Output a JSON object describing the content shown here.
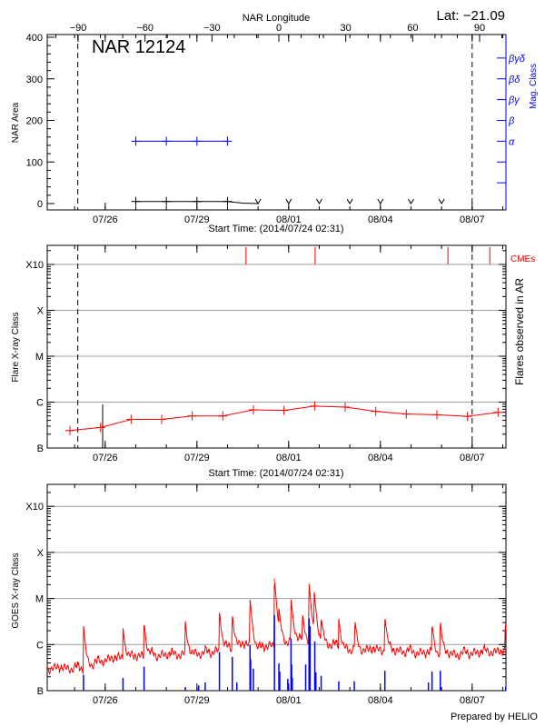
{
  "header": {
    "lat_label": "Lat: −21.09"
  },
  "footer": {
    "prepared_by": "Prepared by HELIO"
  },
  "colors": {
    "area": "#000000",
    "mag_class": "#0000ff",
    "flare": "#ff0000",
    "cme": "#ff0000",
    "goes": "#ff0000",
    "flare_events": "#0000ff",
    "grid": "#a0a0a0"
  },
  "chart_data": [
    {
      "type": "line",
      "title": "NAR 12124",
      "xlabel": "Start Time: (2014/07/24 02:31)",
      "top_xlabel": "NAR Longitude",
      "ylabel": "NAR Area",
      "y2label": "Mag. Class",
      "xlim": [
        "2014-07-24T02:31",
        "2014-08-08T02:31"
      ],
      "ylim": [
        0,
        400
      ],
      "x_ticks": [
        {
          "t": "2014-07-26T00:00",
          "label": "07/26"
        },
        {
          "t": "2014-07-29T00:00",
          "label": "07/29"
        },
        {
          "t": "2014-08-01T00:00",
          "label": "08/01"
        },
        {
          "t": "2014-08-04T00:00",
          "label": "08/04"
        },
        {
          "t": "2014-08-07T00:00",
          "label": "08/07"
        }
      ],
      "top_ticks": [
        -90,
        -60,
        -30,
        0,
        30,
        60,
        90
      ],
      "longitude_range": [
        -90,
        90
      ],
      "y_ticks": [
        0,
        100,
        200,
        300,
        400
      ],
      "mag_class_ticks": [
        {
          "value": 50,
          "label": ""
        },
        {
          "value": 100,
          "label": ""
        },
        {
          "value": 150,
          "label": "α"
        },
        {
          "value": 200,
          "label": "β"
        },
        {
          "value": 250,
          "label": "βγ"
        },
        {
          "value": 300,
          "label": "βδ"
        },
        {
          "value": 350,
          "label": "βγδ"
        }
      ],
      "limb_lines": [
        "2014-07-25T02:30",
        "2014-08-07T00:00"
      ],
      "area_series": {
        "x": [
          "2014-07-27T00:00",
          "2014-07-28T00:00",
          "2014-07-29T00:00",
          "2014-07-30T00:00"
        ],
        "y": [
          5,
          5,
          5,
          5
        ]
      },
      "area_upper_limits": {
        "x": [
          "2014-07-31T00:00",
          "2014-08-01T00:00",
          "2014-08-02T00:00",
          "2014-08-03T00:00",
          "2014-08-04T00:00",
          "2014-08-05T00:00",
          "2014-08-06T00:00"
        ],
        "y": [
          0,
          0,
          0,
          0,
          0,
          0,
          0
        ]
      },
      "mag_series": {
        "x": [
          "2014-07-27T00:00",
          "2014-07-28T00:00",
          "2014-07-29T00:00",
          "2014-07-30T00:00"
        ],
        "y": [
          "α",
          "α",
          "α",
          "α"
        ]
      }
    },
    {
      "type": "line",
      "xlabel": "Start Time: (2014/07/24 02:31)",
      "ylabel": "Flare X-ray Class",
      "y2label": "Flares observed in AR",
      "cme_label": "CMEs",
      "yscale": "log",
      "ylim_flux": [
        1e-07,
        0.0026
      ],
      "y_ticks": [
        {
          "flux": 1e-07,
          "label": "B"
        },
        {
          "flux": 1e-06,
          "label": "C"
        },
        {
          "flux": 1e-05,
          "label": "M"
        },
        {
          "flux": 0.0001,
          "label": "X"
        },
        {
          "flux": 0.001,
          "label": "X10"
        }
      ],
      "x_ticks": [
        {
          "t": "2014-07-26T00:00",
          "label": "07/26"
        },
        {
          "t": "2014-07-29T00:00",
          "label": "07/29"
        },
        {
          "t": "2014-08-01T00:00",
          "label": "08/01"
        },
        {
          "t": "2014-08-04T00:00",
          "label": "08/04"
        },
        {
          "t": "2014-08-07T00:00",
          "label": "08/07"
        }
      ],
      "limb_lines": [
        "2014-07-25T02:30",
        "2014-08-07T00:00"
      ],
      "background_series": {
        "x": [
          "2014-07-24T20:20",
          "2014-07-25T20:20",
          "2014-07-26T20:20",
          "2014-07-27T20:20",
          "2014-07-28T20:20",
          "2014-07-29T20:20",
          "2014-07-30T20:20",
          "2014-07-31T20:20",
          "2014-08-01T20:20",
          "2014-08-02T20:20",
          "2014-08-03T20:20",
          "2014-08-04T20:20",
          "2014-08-05T20:20",
          "2014-08-06T20:20",
          "2014-08-07T20:20"
        ],
        "y": [
          2.4e-07,
          2.8e-07,
          4.2e-07,
          4.2e-07,
          5e-07,
          5e-07,
          6.8e-07,
          6.6e-07,
          8.2e-07,
          7.8e-07,
          6.3e-07,
          5.5e-07,
          5.3e-07,
          4.9e-07,
          6e-07
        ]
      },
      "ar_flares": [
        {
          "t": "2014-07-25T22:00",
          "flux": 8.9e-07
        }
      ],
      "cmes": [
        "2014-07-30T14:30",
        "2014-08-01T20:45",
        "2014-08-06T05:00",
        "2014-08-07T13:50"
      ]
    },
    {
      "type": "line",
      "ylabel": "GOES X-ray Class",
      "yscale": "log",
      "ylim_flux": [
        1e-07,
        0.0029
      ],
      "y_ticks": [
        {
          "flux": 1e-07,
          "label": "B"
        },
        {
          "flux": 1e-06,
          "label": "C"
        },
        {
          "flux": 1e-05,
          "label": "M"
        },
        {
          "flux": 0.0001,
          "label": "X"
        },
        {
          "flux": 0.001,
          "label": "X10"
        }
      ],
      "x_ticks": [
        {
          "t": "2014-07-26T00:00",
          "label": "07/26"
        },
        {
          "t": "2014-07-29T00:00",
          "label": "07/29"
        },
        {
          "t": "2014-08-01T00:00",
          "label": "08/01"
        },
        {
          "t": "2014-08-04T00:00",
          "label": "08/04"
        },
        {
          "t": "2014-08-07T00:00",
          "label": "08/07"
        }
      ],
      "goes_background": {
        "x": [
          "2014-07-24T02:31",
          "2014-07-25T07:00",
          "2014-07-26T00:00",
          "2014-07-27T02:30",
          "2014-07-28T07:00",
          "2014-07-29T10:00",
          "2014-07-30T12:00",
          "2014-07-31T00:00",
          "2014-08-01T07:00",
          "2014-08-02T02:30",
          "2014-08-03T00:00",
          "2014-08-04T05:00",
          "2014-08-05T07:00",
          "2014-08-06T12:00",
          "2014-08-07T14:30",
          "2014-08-08T02:31"
        ],
        "y": [
          3e-07,
          3e-07,
          4.6e-07,
          5.5e-07,
          6e-07,
          6.5e-07,
          1e-06,
          8e-07,
          1.3e-06,
          1.1e-06,
          7.5e-07,
          7.5e-07,
          6.5e-07,
          6e-07,
          7e-07,
          6.5e-07
        ]
      },
      "goes_peaks": [
        {
          "t": "2014-07-25T07:00",
          "flux": 2.3e-06
        },
        {
          "t": "2014-07-26T14:00",
          "flux": 1.9e-06
        },
        {
          "t": "2014-07-27T06:30",
          "flux": 2.6e-06
        },
        {
          "t": "2014-07-28T14:50",
          "flux": 2.5e-06
        },
        {
          "t": "2014-07-29T17:40",
          "flux": 4.8e-06
        },
        {
          "t": "2014-07-30T03:45",
          "flux": 3.8e-06
        },
        {
          "t": "2014-07-30T17:40",
          "flux": 9.4e-06
        },
        {
          "t": "2014-07-31T12:50",
          "flux": 2.7e-05
        },
        {
          "t": "2014-07-31T16:20",
          "flux": 3.7e-06
        },
        {
          "t": "2014-08-01T01:50",
          "flux": 9e-06
        },
        {
          "t": "2014-08-01T10:55",
          "flux": 3.3e-06
        },
        {
          "t": "2014-08-01T16:00",
          "flux": 2.1e-05
        },
        {
          "t": "2014-08-01T20:00",
          "flux": 1.3e-05
        },
        {
          "t": "2014-08-02T01:30",
          "flux": 2.8e-06
        },
        {
          "t": "2014-08-02T15:20",
          "flux": 2.9e-06
        },
        {
          "t": "2014-08-03T04:00",
          "flux": 2.6e-06
        },
        {
          "t": "2014-08-04T03:30",
          "flux": 3.5e-06
        },
        {
          "t": "2014-08-05T16:30",
          "flux": 2.3e-06
        },
        {
          "t": "2014-08-05T23:00",
          "flux": 2.6e-06
        },
        {
          "t": "2014-08-08T02:00",
          "flux": 2.3e-06
        }
      ],
      "flare_events": [
        {
          "t": "2014-07-25T07:00",
          "flux": 2.2e-07
        },
        {
          "t": "2014-07-26T14:00",
          "flux": 1.9e-07
        },
        {
          "t": "2014-07-27T06:30",
          "flux": 3.3e-07
        },
        {
          "t": "2014-07-28T14:50",
          "flux": 1.2e-07
        },
        {
          "t": "2014-07-29T01:20",
          "flux": 1.3e-07
        },
        {
          "t": "2014-07-29T06:30",
          "flux": 1.5e-07
        },
        {
          "t": "2014-07-29T17:40",
          "flux": 6.9e-07
        },
        {
          "t": "2014-07-30T03:45",
          "flux": 5.4e-07
        },
        {
          "t": "2014-07-30T07:20",
          "flux": 1.5e-07
        },
        {
          "t": "2014-07-30T17:40",
          "flux": 9.8e-07
        },
        {
          "t": "2014-07-30T18:10",
          "flux": 4.8e-07
        },
        {
          "t": "2014-07-30T20:20",
          "flux": 3e-07
        },
        {
          "t": "2014-07-31T12:50",
          "flux": 4.4e-06
        },
        {
          "t": "2014-07-31T16:20",
          "flux": 3.9e-07
        },
        {
          "t": "2014-07-31T17:00",
          "flux": 2.6e-07
        },
        {
          "t": "2014-07-31T23:20",
          "flux": 1.8e-07
        },
        {
          "t": "2014-08-01T01:50",
          "flux": 1.36e-06
        },
        {
          "t": "2014-08-01T02:20",
          "flux": 3.7e-07
        },
        {
          "t": "2014-08-01T02:50",
          "flux": 1.9e-07
        },
        {
          "t": "2014-08-01T13:20",
          "flux": 3.7e-07
        },
        {
          "t": "2014-08-01T16:00",
          "flux": 3.7e-06
        },
        {
          "t": "2014-08-01T16:50",
          "flux": 2.5e-06
        },
        {
          "t": "2014-08-01T20:30",
          "flux": 1.17e-06
        },
        {
          "t": "2014-08-01T21:20",
          "flux": 2.5e-07
        },
        {
          "t": "2014-08-02T01:30",
          "flux": 2.1e-07
        },
        {
          "t": "2014-08-02T15:20",
          "flux": 1.6e-07
        },
        {
          "t": "2014-08-03T03:30",
          "flux": 1.6e-07
        },
        {
          "t": "2014-08-04T03:30",
          "flux": 2.7e-07
        },
        {
          "t": "2014-08-05T13:40",
          "flux": 1.5e-07
        },
        {
          "t": "2014-08-05T16:30",
          "flux": 2.6e-07
        },
        {
          "t": "2014-08-05T23:00",
          "flux": 2.7e-07
        },
        {
          "t": "2014-08-08T02:20",
          "flux": 1.2e-07
        }
      ]
    }
  ]
}
